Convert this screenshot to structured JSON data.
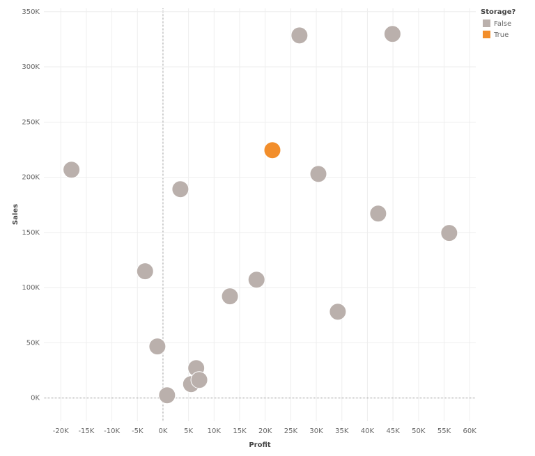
{
  "chart_data": {
    "type": "scatter",
    "x_label": "Profit",
    "y_label": "Sales",
    "legend_title": "Storage?",
    "legend": "top-right",
    "grid": true,
    "xlim": [
      -23300,
      61200
    ],
    "ylim": [
      -21000,
      353000
    ],
    "xticks": [
      {
        "value": -20000,
        "label": "-20K"
      },
      {
        "value": -15000,
        "label": "-15K"
      },
      {
        "value": -10000,
        "label": "-10K"
      },
      {
        "value": -5000,
        "label": "-5K"
      },
      {
        "value": 0,
        "label": "0K"
      },
      {
        "value": 5000,
        "label": "5K"
      },
      {
        "value": 10000,
        "label": "10K"
      },
      {
        "value": 15000,
        "label": "15K"
      },
      {
        "value": 20000,
        "label": "20K"
      },
      {
        "value": 25000,
        "label": "25K"
      },
      {
        "value": 30000,
        "label": "30K"
      },
      {
        "value": 35000,
        "label": "35K"
      },
      {
        "value": 40000,
        "label": "40K"
      },
      {
        "value": 45000,
        "label": "45K"
      },
      {
        "value": 50000,
        "label": "50K"
      },
      {
        "value": 55000,
        "label": "55K"
      },
      {
        "value": 60000,
        "label": "60K"
      }
    ],
    "yticks": [
      {
        "value": 0,
        "label": "0K"
      },
      {
        "value": 50000,
        "label": "50K"
      },
      {
        "value": 100000,
        "label": "100K"
      },
      {
        "value": 150000,
        "label": "150K"
      },
      {
        "value": 200000,
        "label": "200K"
      },
      {
        "value": 250000,
        "label": "250K"
      },
      {
        "value": 300000,
        "label": "300K"
      },
      {
        "value": 350000,
        "label": "350K"
      }
    ],
    "series": [
      {
        "name": "False",
        "color": "#bab0ac",
        "x": [
          -17900,
          -3500,
          -1100,
          800,
          3400,
          6500,
          5500,
          7100,
          13100,
          18300,
          26700,
          30400,
          34200,
          42100,
          44900,
          56000
        ],
        "values": [
          206800,
          114800,
          46700,
          2500,
          189200,
          27100,
          12600,
          16400,
          92100,
          107200,
          328500,
          203000,
          78200,
          167100,
          329800,
          149500
        ]
      },
      {
        "name": "True",
        "color": "#f28e2b",
        "x": [
          21400
        ],
        "values": [
          224500
        ]
      }
    ]
  }
}
